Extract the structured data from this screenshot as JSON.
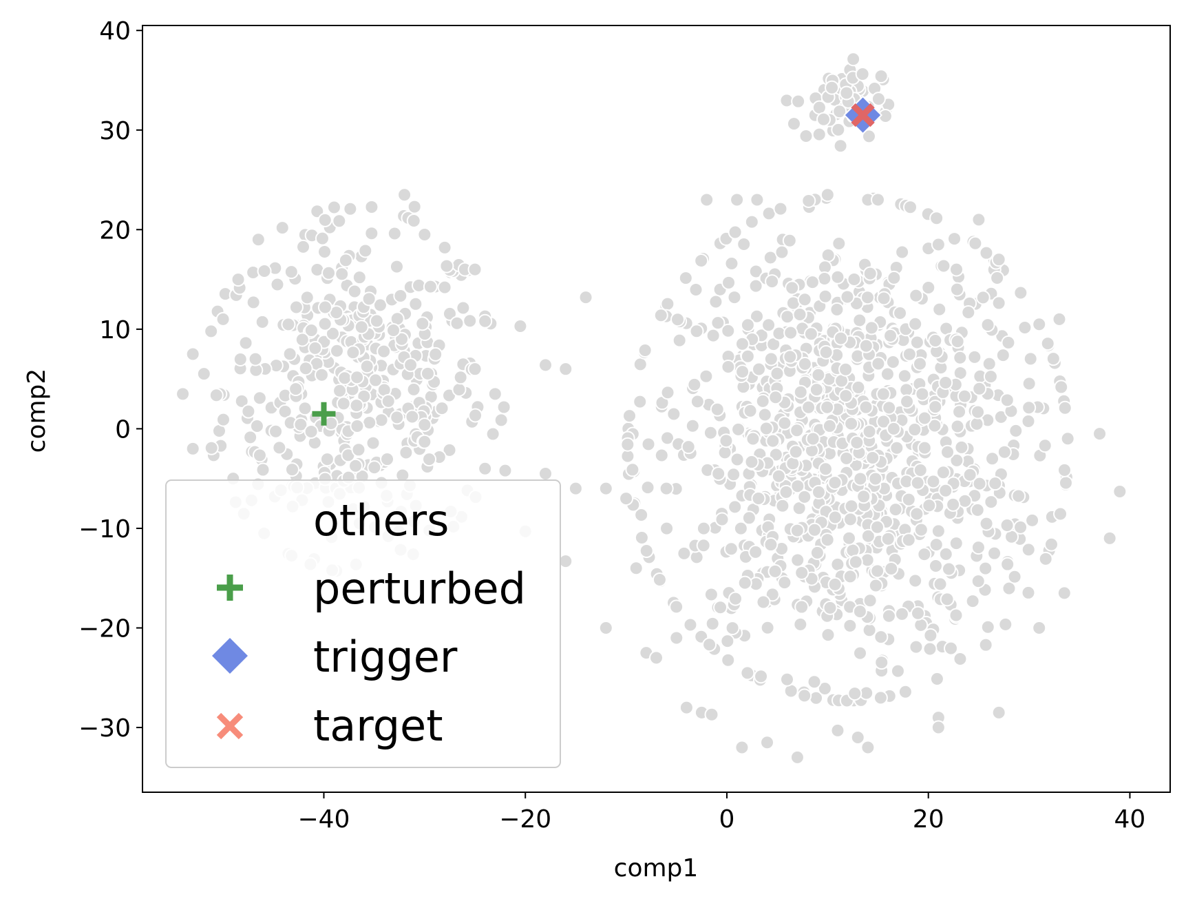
{
  "chart_data": {
    "type": "scatter",
    "title": "",
    "xlabel": "comp1",
    "ylabel": "comp2",
    "xlim": [
      -58,
      44
    ],
    "ylim": [
      -36.5,
      40.5
    ],
    "xticks": [
      -40,
      -20,
      0,
      20,
      40
    ],
    "xtick_labels": [
      "−40",
      "−20",
      "0",
      "20",
      "40"
    ],
    "yticks": [
      -30,
      -20,
      -10,
      0,
      10,
      20,
      30,
      40
    ],
    "ytick_labels": [
      "−30",
      "−20",
      "−10",
      "0",
      "10",
      "20",
      "30",
      "40"
    ],
    "grid": false,
    "legend_position": "lower-left",
    "colors": {
      "others": "#d9d9d9",
      "perturbed": "#4a9e4a",
      "trigger": "#6f89e3",
      "target": "#e06666",
      "legend_target": "#f78c7a"
    },
    "series": [
      {
        "name": "others",
        "marker": "circle",
        "clusters": [
          {
            "label": "left",
            "center": [
              -37,
              4
            ],
            "sd": [
              6.5,
              8
            ],
            "count": 420
          },
          {
            "label": "right",
            "center": [
              12,
              -2
            ],
            "sd": [
              9.5,
              11
            ],
            "count": 1050
          },
          {
            "label": "top",
            "center": [
              11,
              33
            ],
            "sd": [
              2.2,
              2
            ],
            "count": 55
          }
        ],
        "points": [
          [
            -32,
            23.5
          ],
          [
            -31,
            22.3
          ],
          [
            -46.5,
            19
          ],
          [
            -48.5,
            15
          ],
          [
            -50,
            11
          ],
          [
            -53,
            7.5
          ],
          [
            -54,
            3.5
          ],
          [
            -53,
            -2
          ],
          [
            -49,
            -5
          ],
          [
            -30,
            19.5
          ],
          [
            -28,
            18.2
          ],
          [
            -26,
            16
          ],
          [
            -25,
            16
          ],
          [
            -28,
            14.2
          ],
          [
            -24,
            11.3
          ],
          [
            -24,
            10.8
          ],
          [
            -20.5,
            10.3
          ],
          [
            -25,
            6
          ],
          [
            -23,
            3.5
          ],
          [
            -30,
            0.4
          ],
          [
            -30,
            -1.3
          ],
          [
            -24,
            -4
          ],
          [
            -22,
            -4.2
          ],
          [
            -20,
            -10.3
          ],
          [
            -18,
            -4.5
          ],
          [
            -18,
            6.4
          ],
          [
            -16,
            6
          ],
          [
            -16,
            -13.3
          ],
          [
            -12,
            -20
          ],
          [
            -14,
            13.2
          ],
          [
            -10,
            -7
          ],
          [
            -9,
            -14
          ],
          [
            -8,
            -22.5
          ],
          [
            -7,
            -23
          ],
          [
            -5,
            -21
          ],
          [
            -4,
            -28
          ],
          [
            -2.5,
            -28.5
          ],
          [
            -1.5,
            -28.7
          ],
          [
            1.5,
            -32
          ],
          [
            4,
            -31.5
          ],
          [
            7,
            -33
          ],
          [
            11,
            -30.3
          ],
          [
            13,
            -31
          ],
          [
            14,
            -32
          ],
          [
            10,
            23.5
          ],
          [
            14,
            23
          ],
          [
            15,
            23
          ],
          [
            21,
            18.5
          ],
          [
            25,
            21
          ],
          [
            27,
            17
          ],
          [
            33,
            11
          ],
          [
            37,
            -0.5
          ],
          [
            39,
            -6.3
          ],
          [
            38,
            -11
          ],
          [
            33.5,
            -16.5
          ],
          [
            31,
            -20
          ],
          [
            27,
            -28.5
          ],
          [
            21,
            -29
          ],
          [
            21,
            -30
          ],
          [
            -6,
            -6
          ],
          [
            -2,
            23
          ],
          [
            1,
            23
          ],
          [
            3,
            23
          ],
          [
            -15,
            -6
          ],
          [
            -12,
            -6
          ]
        ]
      },
      {
        "name": "perturbed",
        "marker": "plus",
        "points": [
          [
            -40,
            1.5
          ]
        ]
      },
      {
        "name": "trigger",
        "marker": "diamond",
        "points": [
          [
            13.5,
            31.5
          ]
        ]
      },
      {
        "name": "target",
        "marker": "x",
        "points": [
          [
            13.5,
            31.5
          ]
        ]
      }
    ]
  }
}
